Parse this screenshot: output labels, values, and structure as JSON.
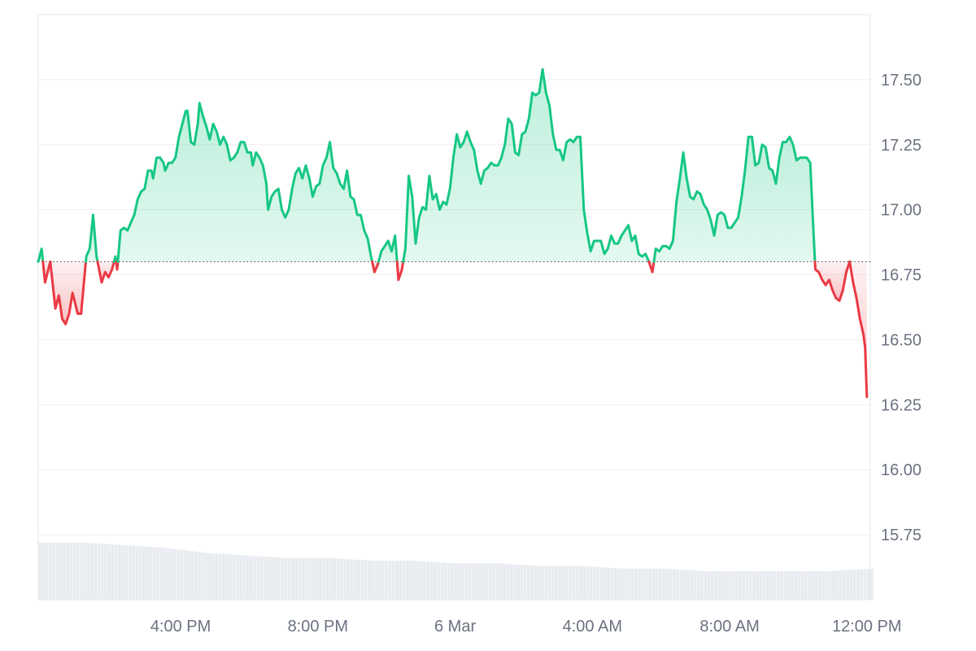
{
  "chart_data": {
    "type": "line",
    "x_tick_labels": [
      "4:00 PM",
      "8:00 PM",
      "6 Mar",
      "4:00 AM",
      "8:00 AM",
      "12:00 PM"
    ],
    "x_tick_hours": [
      16,
      20,
      24,
      28,
      32,
      36
    ],
    "x_range_hours": [
      11.85,
      36.1
    ],
    "y_tick_labels": [
      "17.50",
      "17.25",
      "17.00",
      "16.75",
      "16.50",
      "16.25",
      "16.00",
      "15.75"
    ],
    "y_ticks": [
      17.5,
      17.25,
      17.0,
      16.75,
      16.5,
      16.25,
      16.0,
      15.75
    ],
    "ylim": [
      15.5,
      17.75
    ],
    "baseline": 16.8,
    "colors": {
      "up": "#16c784",
      "down": "#ea3943",
      "up_fill": "#16c784",
      "down_fill": "#ea3943",
      "grid": "#eeeeee",
      "axis": "#e5e7eb",
      "volume": "#e8ebef",
      "tick_text": "#6b7280"
    },
    "series": [
      {
        "points": [
          [
            11.85,
            16.8
          ],
          [
            11.95,
            16.85
          ],
          [
            12.05,
            16.72
          ],
          [
            12.2,
            16.8
          ],
          [
            12.35,
            16.62
          ],
          [
            12.45,
            16.67
          ],
          [
            12.55,
            16.58
          ],
          [
            12.65,
            16.56
          ],
          [
            12.75,
            16.6
          ],
          [
            12.85,
            16.68
          ],
          [
            13.0,
            16.6
          ],
          [
            13.1,
            16.6
          ],
          [
            13.25,
            16.82
          ],
          [
            13.35,
            16.85
          ],
          [
            13.45,
            16.98
          ],
          [
            13.55,
            16.82
          ],
          [
            13.7,
            16.72
          ],
          [
            13.8,
            16.76
          ],
          [
            13.9,
            16.74
          ],
          [
            14.0,
            16.77
          ],
          [
            14.1,
            16.82
          ],
          [
            14.15,
            16.77
          ],
          [
            14.25,
            16.92
          ],
          [
            14.35,
            16.93
          ],
          [
            14.45,
            16.92
          ],
          [
            14.55,
            16.95
          ],
          [
            14.65,
            16.98
          ],
          [
            14.75,
            17.04
          ],
          [
            14.85,
            17.07
          ],
          [
            14.95,
            17.08
          ],
          [
            15.05,
            17.15
          ],
          [
            15.15,
            17.15
          ],
          [
            15.2,
            17.12
          ],
          [
            15.3,
            17.2
          ],
          [
            15.4,
            17.2
          ],
          [
            15.5,
            17.18
          ],
          [
            15.55,
            17.15
          ],
          [
            15.65,
            17.18
          ],
          [
            15.75,
            17.18
          ],
          [
            15.85,
            17.2
          ],
          [
            15.95,
            17.28
          ],
          [
            16.05,
            17.33
          ],
          [
            16.15,
            17.38
          ],
          [
            16.2,
            17.38
          ],
          [
            16.3,
            17.26
          ],
          [
            16.4,
            17.25
          ],
          [
            16.5,
            17.33
          ],
          [
            16.55,
            17.41
          ],
          [
            16.65,
            17.36
          ],
          [
            16.75,
            17.32
          ],
          [
            16.85,
            17.27
          ],
          [
            16.95,
            17.33
          ],
          [
            17.05,
            17.3
          ],
          [
            17.15,
            17.25
          ],
          [
            17.25,
            17.28
          ],
          [
            17.35,
            17.25
          ],
          [
            17.45,
            17.19
          ],
          [
            17.55,
            17.2
          ],
          [
            17.65,
            17.22
          ],
          [
            17.75,
            17.26
          ],
          [
            17.85,
            17.26
          ],
          [
            17.95,
            17.22
          ],
          [
            18.05,
            17.22
          ],
          [
            18.1,
            17.17
          ],
          [
            18.2,
            17.22
          ],
          [
            18.3,
            17.2
          ],
          [
            18.4,
            17.17
          ],
          [
            18.5,
            17.1
          ],
          [
            18.55,
            17.0
          ],
          [
            18.65,
            17.05
          ],
          [
            18.75,
            17.07
          ],
          [
            18.85,
            17.08
          ],
          [
            18.95,
            17.0
          ],
          [
            19.05,
            16.97
          ],
          [
            19.15,
            17.0
          ],
          [
            19.25,
            17.08
          ],
          [
            19.35,
            17.14
          ],
          [
            19.45,
            17.16
          ],
          [
            19.55,
            17.12
          ],
          [
            19.65,
            17.17
          ],
          [
            19.75,
            17.12
          ],
          [
            19.85,
            17.05
          ],
          [
            19.95,
            17.09
          ],
          [
            20.05,
            17.1
          ],
          [
            20.15,
            17.17
          ],
          [
            20.25,
            17.2
          ],
          [
            20.35,
            17.26
          ],
          [
            20.45,
            17.16
          ],
          [
            20.55,
            17.14
          ],
          [
            20.65,
            17.1
          ],
          [
            20.75,
            17.08
          ],
          [
            20.85,
            17.15
          ],
          [
            20.95,
            17.05
          ],
          [
            21.05,
            17.04
          ],
          [
            21.15,
            16.98
          ],
          [
            21.25,
            16.98
          ],
          [
            21.35,
            16.92
          ],
          [
            21.45,
            16.89
          ],
          [
            21.55,
            16.82
          ],
          [
            21.65,
            16.76
          ],
          [
            21.75,
            16.79
          ],
          [
            21.85,
            16.84
          ],
          [
            21.95,
            16.86
          ],
          [
            22.05,
            16.88
          ],
          [
            22.15,
            16.84
          ],
          [
            22.25,
            16.9
          ],
          [
            22.35,
            16.73
          ],
          [
            22.45,
            16.77
          ],
          [
            22.55,
            16.85
          ],
          [
            22.65,
            17.13
          ],
          [
            22.75,
            17.05
          ],
          [
            22.85,
            16.87
          ],
          [
            22.95,
            16.97
          ],
          [
            23.05,
            17.01
          ],
          [
            23.15,
            17.0
          ],
          [
            23.25,
            17.13
          ],
          [
            23.35,
            17.04
          ],
          [
            23.45,
            17.06
          ],
          [
            23.55,
            17.0
          ],
          [
            23.65,
            17.03
          ],
          [
            23.75,
            17.02
          ],
          [
            23.85,
            17.08
          ],
          [
            23.95,
            17.2
          ],
          [
            24.05,
            17.29
          ],
          [
            24.15,
            17.24
          ],
          [
            24.25,
            17.26
          ],
          [
            24.35,
            17.3
          ],
          [
            24.45,
            17.26
          ],
          [
            24.55,
            17.23
          ],
          [
            24.65,
            17.15
          ],
          [
            24.75,
            17.1
          ],
          [
            24.85,
            17.15
          ],
          [
            24.95,
            17.16
          ],
          [
            25.05,
            17.18
          ],
          [
            25.15,
            17.17
          ],
          [
            25.25,
            17.17
          ],
          [
            25.35,
            17.2
          ],
          [
            25.45,
            17.25
          ],
          [
            25.55,
            17.35
          ],
          [
            25.65,
            17.33
          ],
          [
            25.75,
            17.22
          ],
          [
            25.85,
            17.21
          ],
          [
            25.95,
            17.29
          ],
          [
            26.05,
            17.3
          ],
          [
            26.15,
            17.35
          ],
          [
            26.25,
            17.45
          ],
          [
            26.35,
            17.44
          ],
          [
            26.45,
            17.45
          ],
          [
            26.55,
            17.54
          ],
          [
            26.65,
            17.45
          ],
          [
            26.75,
            17.4
          ],
          [
            26.85,
            17.29
          ],
          [
            26.95,
            17.23
          ],
          [
            27.05,
            17.23
          ],
          [
            27.15,
            17.19
          ],
          [
            27.25,
            17.26
          ],
          [
            27.35,
            17.27
          ],
          [
            27.45,
            17.26
          ],
          [
            27.55,
            17.28
          ],
          [
            27.65,
            17.28
          ],
          [
            27.75,
            17.0
          ],
          [
            27.85,
            16.91
          ],
          [
            27.95,
            16.84
          ],
          [
            28.05,
            16.88
          ],
          [
            28.15,
            16.88
          ],
          [
            28.25,
            16.88
          ],
          [
            28.35,
            16.83
          ],
          [
            28.45,
            16.85
          ],
          [
            28.55,
            16.9
          ],
          [
            28.65,
            16.87
          ],
          [
            28.75,
            16.87
          ],
          [
            28.85,
            16.9
          ],
          [
            28.95,
            16.92
          ],
          [
            29.05,
            16.94
          ],
          [
            29.15,
            16.88
          ],
          [
            29.25,
            16.9
          ],
          [
            29.35,
            16.83
          ],
          [
            29.45,
            16.82
          ],
          [
            29.55,
            16.83
          ],
          [
            29.65,
            16.8
          ],
          [
            29.75,
            16.76
          ],
          [
            29.85,
            16.85
          ],
          [
            29.95,
            16.84
          ],
          [
            30.05,
            16.86
          ],
          [
            30.15,
            16.86
          ],
          [
            30.25,
            16.85
          ],
          [
            30.35,
            16.88
          ],
          [
            30.45,
            17.03
          ],
          [
            30.55,
            17.12
          ],
          [
            30.65,
            17.22
          ],
          [
            30.75,
            17.12
          ],
          [
            30.85,
            17.05
          ],
          [
            30.95,
            17.04
          ],
          [
            31.05,
            17.07
          ],
          [
            31.15,
            17.06
          ],
          [
            31.25,
            17.02
          ],
          [
            31.35,
            17.0
          ],
          [
            31.45,
            16.96
          ],
          [
            31.55,
            16.9
          ],
          [
            31.65,
            16.98
          ],
          [
            31.75,
            16.99
          ],
          [
            31.85,
            16.98
          ],
          [
            31.95,
            16.93
          ],
          [
            32.05,
            16.93
          ],
          [
            32.15,
            16.95
          ],
          [
            32.25,
            16.97
          ],
          [
            32.35,
            17.05
          ],
          [
            32.45,
            17.15
          ],
          [
            32.55,
            17.28
          ],
          [
            32.65,
            17.28
          ],
          [
            32.75,
            17.17
          ],
          [
            32.85,
            17.18
          ],
          [
            32.95,
            17.25
          ],
          [
            33.05,
            17.24
          ],
          [
            33.15,
            17.16
          ],
          [
            33.25,
            17.15
          ],
          [
            33.35,
            17.1
          ],
          [
            33.45,
            17.2
          ],
          [
            33.55,
            17.26
          ],
          [
            33.65,
            17.26
          ],
          [
            33.75,
            17.28
          ],
          [
            33.85,
            17.25
          ],
          [
            33.95,
            17.19
          ],
          [
            34.05,
            17.2
          ],
          [
            34.15,
            17.2
          ],
          [
            34.25,
            17.2
          ],
          [
            34.35,
            17.18
          ],
          [
            34.45,
            16.9
          ],
          [
            34.5,
            16.77
          ],
          [
            34.6,
            16.76
          ],
          [
            34.7,
            16.73
          ],
          [
            34.8,
            16.71
          ],
          [
            34.9,
            16.73
          ],
          [
            35.0,
            16.69
          ],
          [
            35.1,
            16.66
          ],
          [
            35.2,
            16.65
          ],
          [
            35.3,
            16.69
          ],
          [
            35.4,
            16.76
          ],
          [
            35.5,
            16.8
          ],
          [
            35.6,
            16.72
          ],
          [
            35.7,
            16.66
          ],
          [
            35.8,
            16.58
          ],
          [
            35.9,
            16.52
          ],
          [
            35.95,
            16.47
          ],
          [
            36.0,
            16.28
          ]
        ]
      }
    ],
    "volume": {
      "values": [
        15.72,
        15.72,
        15.71,
        15.7,
        15.68,
        15.67,
        15.66,
        15.66,
        15.65,
        15.65,
        15.64,
        15.64,
        15.63,
        15.63,
        15.62,
        15.62,
        15.61,
        15.61,
        15.61,
        15.61,
        15.62
      ]
    }
  }
}
